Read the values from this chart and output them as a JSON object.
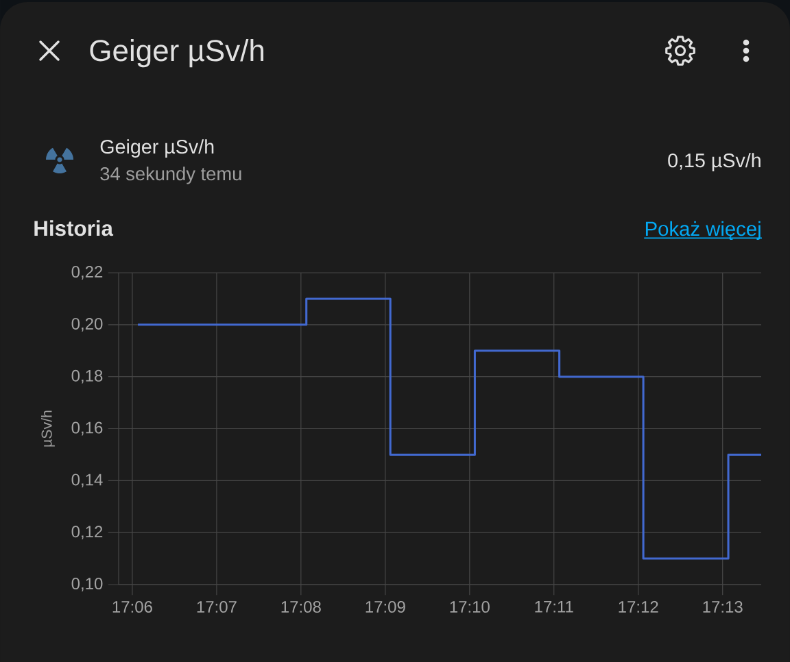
{
  "chart_data": {
    "type": "step",
    "title": "Geiger µSv/h",
    "ylabel": "µSv/h",
    "annotations": [
      "Geiger µSv/h",
      "34 sekundy temu",
      "0,15 µSv/h",
      "Historia",
      "Pokaż więcej"
    ],
    "x": [
      17.1011,
      17.1344,
      17.151,
      17.1677,
      17.1844,
      17.201,
      17.2178,
      17.2243
    ],
    "values": [
      0.2,
      0.21,
      0.15,
      0.19,
      0.18,
      0.11,
      0.15,
      0.15
    ],
    "color": "#4269d0",
    "xlim": [
      17.0973,
      17.2243
    ],
    "xticks": [
      {
        "value": 17.1,
        "label": "17:06"
      },
      {
        "value": 17.11667,
        "label": "17:07"
      },
      {
        "value": 17.13333,
        "label": "17:08"
      },
      {
        "value": 17.15,
        "label": "17:09"
      },
      {
        "value": 17.16667,
        "label": "17:10"
      },
      {
        "value": 17.18333,
        "label": "17:11"
      },
      {
        "value": 17.2,
        "label": "17:12"
      },
      {
        "value": 17.21667,
        "label": "17:13"
      }
    ],
    "ylim": [
      0.1,
      0.22
    ],
    "yticks": [
      {
        "value": 0.1,
        "label": "0,10"
      },
      {
        "value": 0.12,
        "label": "0,12"
      },
      {
        "value": 0.14,
        "label": "0,14"
      },
      {
        "value": 0.16,
        "label": "0,16"
      },
      {
        "value": 0.18,
        "label": "0,18"
      },
      {
        "value": 0.2,
        "label": "0,20"
      },
      {
        "value": 0.22,
        "label": "0,22"
      }
    ],
    "grid": true
  }
}
